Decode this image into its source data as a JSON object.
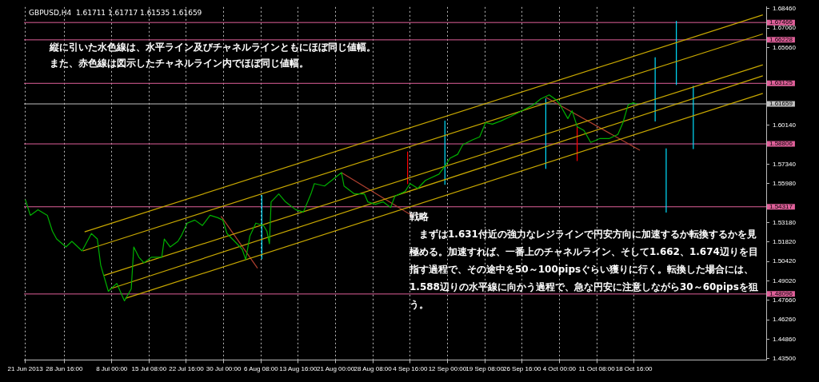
{
  "chart_data": {
    "type": "line",
    "title": "GBPUSD,H4  1.61711 1.61717 1.61535 1.61659",
    "annotations": [
      "縦に引いた水色線は、水平ライン及びチャネルラインともにほぼ同じ値幅。",
      "また、赤色線は図示したチャネルライン内でほぼ同じ値幅。",
      "戦略",
      "　まずは1.631付近の強力なレジラインで円安方向に加速するか転換するかを見",
      "極める。加速すれば、一番上のチャネルライン、そして1.662、1.674辺りを目",
      "指す過程で、その途中を50～100pipsぐらい獲りに行く。転換した場合には、",
      "1.588辺りの水平線に向かう過程で、急な円安に注意しながら30～60pipsを狙",
      "う。"
    ],
    "xlim": [
      "2013-06-20T18:00",
      "2013-11-13T16:00"
    ],
    "xticks": [
      {
        "value": "2013-06-21T00:00",
        "label": "21 Jun 2013"
      },
      {
        "value": "2013-06-28T16:00",
        "label": "28 Jun 16:00"
      },
      {
        "value": "2013-07-08T00:00",
        "label": "8 Jul 00:00"
      },
      {
        "value": "2013-07-15T08:00",
        "label": "15 Jul 08:00"
      },
      {
        "value": "2013-07-22T16:00",
        "label": "22 Jul 16:00"
      },
      {
        "value": "2013-07-30T00:00",
        "label": "30 Jul 00:00"
      },
      {
        "value": "2013-08-06T08:00",
        "label": "6 Aug 08:00"
      },
      {
        "value": "2013-08-13T16:00",
        "label": "13 Aug 16:00"
      },
      {
        "value": "2013-08-21T00:00",
        "label": "21 Aug 00:00"
      },
      {
        "value": "2013-08-28T08:00",
        "label": "28 Aug 08:00"
      },
      {
        "value": "2013-09-04T16:00",
        "label": "4 Sep 16:00"
      },
      {
        "value": "2013-09-12T00:00",
        "label": "12 Sep 00:00"
      },
      {
        "value": "2013-09-19T08:00",
        "label": "19 Sep 08:00"
      },
      {
        "value": "2013-09-26T16:00",
        "label": "26 Sep 16:00"
      },
      {
        "value": "2013-10-04T00:00",
        "label": "4 Oct 00:00"
      },
      {
        "value": "2013-10-11T08:00",
        "label": "11 Oct 08:00"
      },
      {
        "value": "2013-10-18T16:00",
        "label": "18 Oct 16:00"
      }
    ],
    "ylim": [
      1.4339,
      1.6857
    ],
    "yticks": [
      {
        "value": 1.435,
        "label": "1.43500"
      },
      {
        "value": 1.4486,
        "label": "1.44860"
      },
      {
        "value": 1.4626,
        "label": "1.46260"
      },
      {
        "value": 1.4766,
        "label": "1.47660"
      },
      {
        "value": 1.4902,
        "label": "1.49020"
      },
      {
        "value": 1.5042,
        "label": "1.50420"
      },
      {
        "value": 1.5182,
        "label": "1.51820"
      },
      {
        "value": 1.5318,
        "label": "1.53180"
      },
      {
        "value": 1.5598,
        "label": "1.55980"
      },
      {
        "value": 1.5734,
        "label": "1.57340"
      },
      {
        "value": 1.6014,
        "label": "1.60140"
      },
      {
        "value": 1.6566,
        "label": "1.65660"
      },
      {
        "value": 1.6706,
        "label": "1.67060"
      },
      {
        "value": 1.6846,
        "label": "1.68460"
      }
    ],
    "grid": "x",
    "legend": false,
    "marker": "none",
    "ref_lines": [
      {
        "axis": "y",
        "value": 1.67466,
        "label": "1.67466",
        "color": "#e0609a"
      },
      {
        "axis": "y",
        "value": 1.66228,
        "label": "1.66228",
        "color": "#e0609a"
      },
      {
        "axis": "y",
        "value": 1.63125,
        "label": "1.63125",
        "color": "#e0609a"
      },
      {
        "axis": "y",
        "value": 1.61659,
        "label": "1.61659",
        "color": "#c0c0c0"
      },
      {
        "axis": "y",
        "value": 1.58806,
        "label": "1.58806",
        "color": "#e0609a"
      },
      {
        "axis": "y",
        "value": 1.54317,
        "label": "1.54317",
        "color": "#e0609a"
      },
      {
        "axis": "y",
        "value": 1.48096,
        "label": "1.48096",
        "color": "#e0609a"
      }
    ],
    "series": [
      {
        "color": "#00b000",
        "x": [
          "2013-06-21T00:00",
          "2013-06-22T00:00",
          "2013-06-23T12:00",
          "2013-06-25T08:00",
          "2013-06-26T08:00",
          "2013-06-27T04:00",
          "2013-06-29T00:00",
          "2013-06-30T04:00",
          "2013-07-02T04:00",
          "2013-07-04T00:00",
          "2013-07-05T04:00",
          "2013-07-05T20:00",
          "2013-07-07T08:00",
          "2013-07-09T00:00",
          "2013-07-10T12:00",
          "2013-07-11T20:00",
          "2013-07-12T08:00",
          "2013-07-13T08:00",
          "2013-07-14T08:00",
          "2013-07-15T20:00",
          "2013-07-17T20:00",
          "2013-07-18T08:00",
          "2013-07-19T12:00",
          "2013-07-21T00:00",
          "2013-07-21T16:00",
          "2013-07-22T20:00",
          "2013-07-24T08:00",
          "2013-07-25T20:00",
          "2013-07-27T08:00",
          "2013-07-28T20:00",
          "2013-07-29T20:00",
          "2013-07-30T16:00",
          "2013-08-01T04:00",
          "2013-08-02T16:00",
          "2013-08-03T08:00",
          "2013-08-04T04:00",
          "2013-08-05T08:00",
          "2013-08-06T20:00",
          "2013-08-07T12:00",
          "2013-08-08T00:00",
          "2013-08-08T08:00",
          "2013-08-09T20:00",
          "2013-08-11T04:00",
          "2013-08-13T04:00",
          "2013-08-14T16:00",
          "2013-08-16T04:00",
          "2013-08-16T20:00",
          "2013-08-18T20:00",
          "2013-08-20T20:00",
          "2013-08-22T04:00",
          "2013-08-22T16:00",
          "2013-08-24T16:00",
          "2013-08-26T16:00",
          "2013-08-27T08:00",
          "2013-08-28T20:00",
          "2013-08-30T08:00",
          "2013-08-31T20:00",
          "2013-09-01T16:00",
          "2013-09-03T16:00",
          "2013-09-04T16:00",
          "2013-09-06T04:00",
          "2013-09-07T16:00",
          "2013-09-10T08:00",
          "2013-09-11T12:00",
          "2013-09-12T12:00",
          "2013-09-14T00:00",
          "2013-09-15T00:00",
          "2013-09-16T20:00",
          "2013-09-18T08:00",
          "2013-09-19T12:00",
          "2013-09-20T20:00",
          "2013-09-22T12:00",
          "2013-09-24T12:00",
          "2013-09-26T16:00",
          "2013-09-28T20:00",
          "2013-09-30T08:00",
          "2013-10-02T00:00",
          "2013-10-03T12:00",
          "2013-10-04T04:00",
          "2013-10-05T16:00",
          "2013-10-06T12:00",
          "2013-10-07T12:00",
          "2013-10-08T20:00",
          "2013-10-10T04:00",
          "2013-10-12T00:00",
          "2013-10-13T20:00",
          "2013-10-15T12:00",
          "2013-10-16T12:00",
          "2013-10-17T12:00",
          "2013-10-18T12:00",
          "2013-10-19T04:00"
        ],
        "values": [
          1.5484,
          1.5371,
          1.5411,
          1.5371,
          1.5258,
          1.5202,
          1.5145,
          1.5185,
          1.5117,
          1.5241,
          1.5202,
          1.5015,
          1.4829,
          1.4885,
          1.4761,
          1.4846,
          1.5145,
          1.5072,
          1.5032,
          1.5072,
          1.5072,
          1.5202,
          1.5145,
          1.5185,
          1.5224,
          1.5315,
          1.5337,
          1.5298,
          1.5371,
          1.5354,
          1.5337,
          1.5241,
          1.5185,
          1.5128,
          1.5055,
          1.5224,
          1.5315,
          1.5298,
          1.5258,
          1.5168,
          1.5467,
          1.5524,
          1.5467,
          1.5411,
          1.5394,
          1.5524,
          1.5597,
          1.558,
          1.5637,
          1.5676,
          1.558,
          1.5524,
          1.5524,
          1.5467,
          1.545,
          1.5467,
          1.5428,
          1.5507,
          1.5541,
          1.5597,
          1.5563,
          1.562,
          1.5665,
          1.5722,
          1.5778,
          1.5806,
          1.5874,
          1.5908,
          1.5931,
          1.6032,
          1.6021,
          1.6044,
          1.6078,
          1.6117,
          1.6157,
          1.6202,
          1.623,
          1.6191,
          1.6157,
          1.6061,
          1.6117,
          1.6004,
          1.5976,
          1.5891,
          1.5919,
          1.5919,
          1.5948,
          1.6032,
          1.6157,
          1.6174,
          1.6166
        ]
      },
      {
        "color": "#c8a800",
        "x": [
          "2013-07-02T16:00",
          "2013-11-13T00:00"
        ],
        "values": [
          1.5253,
          1.6801
        ]
      },
      {
        "color": "#c8a800",
        "x": [
          "2013-07-02T08:00",
          "2013-11-13T00:00"
        ],
        "values": [
          1.5117,
          1.6665
        ]
      },
      {
        "color": "#c8a800",
        "x": [
          "2013-07-06T12:00",
          "2013-11-13T00:00"
        ],
        "values": [
          1.4942,
          1.6445
        ]
      },
      {
        "color": "#c8a800",
        "x": [
          "2013-07-07T16:00",
          "2013-11-13T00:00"
        ],
        "values": [
          1.4846,
          1.6366
        ]
      },
      {
        "color": "#c8a800",
        "x": [
          "2013-07-10T16:00",
          "2013-11-13T00:00"
        ],
        "values": [
          1.4778,
          1.6241
        ]
      },
      {
        "color": "#b04030",
        "x": [
          "2013-07-29T12:00",
          "2013-08-05T16:00"
        ],
        "values": [
          1.5364,
          1.4993
        ]
      },
      {
        "color": "#b04030",
        "x": [
          "2013-08-22T04:00",
          "2013-09-05T04:00"
        ],
        "values": [
          1.5676,
          1.5366
        ]
      },
      {
        "color": "#b04030",
        "x": [
          "2013-10-01T08:00",
          "2013-10-19T20:00"
        ],
        "values": [
          1.6213,
          1.5835
        ]
      },
      {
        "color": "#00e0ff",
        "x": [
          "2013-08-06T12:00",
          "2013-08-06T12:00"
        ],
        "values": [
          1.5513,
          1.5061
        ]
      },
      {
        "color": "#00e0ff",
        "x": [
          "2013-09-11T12:00",
          "2013-09-11T12:00"
        ],
        "values": [
          1.6044,
          1.5592
        ]
      },
      {
        "color": "#00e0ff",
        "x": [
          "2013-10-01T08:00",
          "2013-10-01T08:00"
        ],
        "values": [
          1.6202,
          1.5705
        ]
      },
      {
        "color": "#00e0ff",
        "x": [
          "2013-10-22T20:00",
          "2013-10-22T20:00"
        ],
        "values": [
          1.6496,
          1.6044
        ]
      },
      {
        "color": "#00e0ff",
        "x": [
          "2013-10-25T00:00",
          "2013-10-25T00:00"
        ],
        "values": [
          1.5846,
          1.5394
        ]
      },
      {
        "color": "#00e0ff",
        "x": [
          "2013-10-27T00:00",
          "2013-10-27T00:00"
        ],
        "values": [
          1.6756,
          1.6304
        ]
      },
      {
        "color": "#00e0ff",
        "x": [
          "2013-10-30T08:00",
          "2013-10-30T08:00"
        ],
        "values": [
          1.6292,
          1.5846
        ]
      },
      {
        "color": "#ff0000",
        "x": [
          "2013-09-04T04:00",
          "2013-09-04T04:00"
        ],
        "values": [
          1.5823,
          1.5597
        ]
      },
      {
        "color": "#ff0000",
        "x": [
          "2013-10-07T12:00",
          "2013-10-07T12:00"
        ],
        "values": [
          1.6004,
          1.5761
        ]
      }
    ]
  }
}
